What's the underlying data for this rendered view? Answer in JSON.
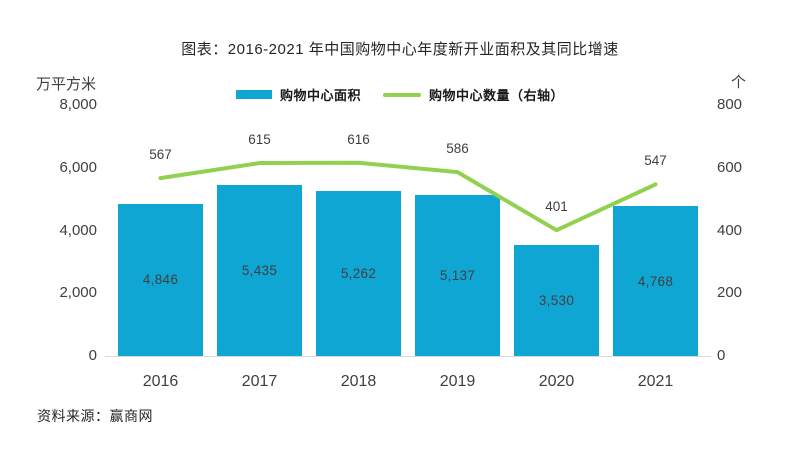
{
  "title": "图表：2016-2021 年中国购物中心年度新开业面积及其同比增速",
  "source": "资料来源：赢商网",
  "legend": [
    {
      "label": "购物中心面积",
      "color": "#10a6d3",
      "type": "bar"
    },
    {
      "label": "购物中心数量（右轴）",
      "color": "#92d050",
      "type": "line"
    }
  ],
  "chart_data": {
    "type": "bar",
    "title": "图表：2016-2021 年中国购物中心年度新开业面积及其同比增速",
    "categories": [
      "2016",
      "2017",
      "2018",
      "2019",
      "2020",
      "2021"
    ],
    "series": [
      {
        "name": "购物中心面积",
        "type": "bar",
        "axis": "left",
        "color": "#10a6d3",
        "values": [
          4846,
          5435,
          5262,
          5137,
          3530,
          4768
        ],
        "labels": [
          "4,846",
          "5,435",
          "5,262",
          "5,137",
          "3,530",
          "4,768"
        ]
      },
      {
        "name": "购物中心数量（右轴）",
        "type": "line",
        "axis": "right",
        "color": "#92d050",
        "values": [
          567,
          615,
          616,
          586,
          401,
          547
        ],
        "labels": [
          "567",
          "615",
          "616",
          "586",
          "401",
          "547"
        ]
      }
    ],
    "left_axis": {
      "title": "万平方米",
      "min": 0,
      "max": 8000,
      "step": 2000
    },
    "right_axis": {
      "title": "个",
      "min": 0,
      "max": 800,
      "step": 200
    },
    "grid": false,
    "legend_position": "top"
  }
}
